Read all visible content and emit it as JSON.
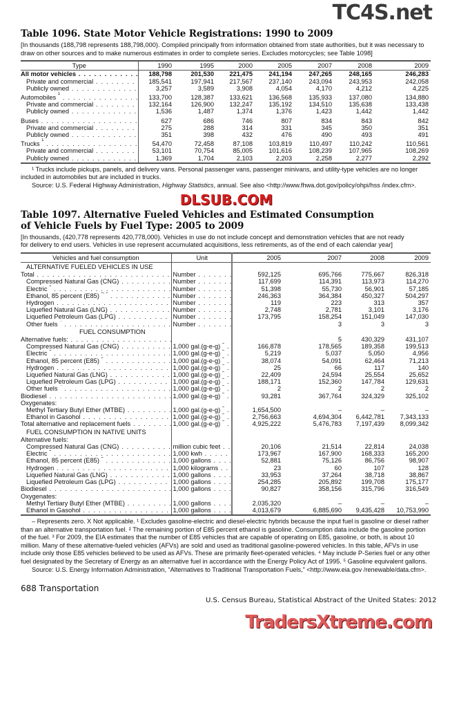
{
  "table1096": {
    "title": "Table 1096. State Motor Vehicle Registrations: 1990 to 2009",
    "headnote": "[In thousands (188,798 represents 188,798,000). Compiled principally from information obtained from state authorities, but it was necessary to draw on other sources and to make numerous estimates in order to complete series. Excludes motorcycles; see Table 1098]",
    "columns": [
      "Type",
      "1990",
      "1995",
      "2000",
      "2005",
      "2007",
      "2008",
      "2009"
    ],
    "rows": [
      {
        "label": "All motor vehicles",
        "bold": true,
        "values": [
          "188,798",
          "201,530",
          "221,475",
          "241,194",
          "247,265",
          "248,165",
          "246,283"
        ]
      },
      {
        "label": "Private and commercial",
        "indent": 1,
        "values": [
          "185,541",
          "197,941",
          "217,567",
          "237,140",
          "243,094",
          "243,953",
          "242,058"
        ]
      },
      {
        "label": "Publicly owned",
        "indent": 1,
        "values": [
          "3,257",
          "3,589",
          "3,908",
          "4,054",
          "4,170",
          "4,212",
          "4,225"
        ]
      },
      {
        "label": "Automobiles",
        "sup": "1",
        "gap": true,
        "values": [
          "133,700",
          "128,387",
          "133,621",
          "136,568",
          "135,933",
          "137,080",
          "134,880"
        ]
      },
      {
        "label": "Private and commercial",
        "indent": 1,
        "values": [
          "132,164",
          "126,900",
          "132,247",
          "135,192",
          "134,510",
          "135,638",
          "133,438"
        ]
      },
      {
        "label": "Publicly owned",
        "indent": 1,
        "values": [
          "1,536",
          "1,487",
          "1,374",
          "1,376",
          "1,423",
          "1,442",
          "1,442"
        ]
      },
      {
        "label": "Buses",
        "gap": true,
        "values": [
          "627",
          "686",
          "746",
          "807",
          "834",
          "843",
          "842"
        ]
      },
      {
        "label": "Private and commercial",
        "indent": 1,
        "values": [
          "275",
          "288",
          "314",
          "331",
          "345",
          "350",
          "351"
        ]
      },
      {
        "label": "Publicly owned",
        "indent": 1,
        "values": [
          "351",
          "398",
          "432",
          "476",
          "490",
          "493",
          "491"
        ]
      },
      {
        "label": "Trucks",
        "sup": "1",
        "gap": true,
        "values": [
          "54,470",
          "72,458",
          "87,108",
          "103,819",
          "110,497",
          "110,242",
          "110,561"
        ]
      },
      {
        "label": "Private and commercial",
        "indent": 1,
        "values": [
          "53,101",
          "70,754",
          "85,005",
          "101,616",
          "108,239",
          "107,965",
          "108,269"
        ]
      },
      {
        "label": "Publicly owned",
        "indent": 1,
        "values": [
          "1,369",
          "1,704",
          "2,103",
          "2,203",
          "2,258",
          "2,277",
          "2,292"
        ]
      }
    ],
    "footnote": "¹ Trucks include pickups, panels, and delivery vans. Personal passenger vans, passenger minivans, and utility-type vehicles are no longer included in automobiles but are included in trucks.",
    "source_prefix": "Source: U.S. Federal Highway Administration, ",
    "source_italic": "Highway Statistics",
    "source_suffix": ", annual. See also <http://www.fhwa.dot.gov/policy/ohpi/hss /index.cfm>."
  },
  "table1097": {
    "title_line1": "Table 1097. Alternative Fueled Vehicles and Estimated Consumption",
    "title_line2": "of Vehicle Fuels by Fuel Type: 2005 to 2009",
    "headnote": "[In thousands, (420,778 represents 420,778,000). Vehicles in use do not include concept and demonstration vehicles that are not ready for delivery to end users. Vehicles in use represent accumulated acquisitions, less retirements, as of the end of each calendar year]",
    "columns": [
      "Vehicles and fuel consumption",
      "Unit",
      "2005",
      "2007",
      "2008",
      "2009"
    ],
    "rows": [
      {
        "section": "ALTERNATIVE FUELED VEHICLES IN USE"
      },
      {
        "label": "Total",
        "unit": "Number",
        "values": [
          "592,125",
          "695,766",
          "775,667",
          "826,318"
        ]
      },
      {
        "label": "Compressed Natural Gas (CNG)",
        "indent": 1,
        "unit": "Number",
        "values": [
          "117,699",
          "114,391",
          "113,973",
          "114,270"
        ]
      },
      {
        "label": "Electric",
        "sup": "1",
        "indent": 1,
        "unit": "Number",
        "values": [
          "51,398",
          "55,730",
          "56,901",
          "57,185"
        ]
      },
      {
        "label": "Ethanol, 85 percent (E85)",
        "sup": "2, 3",
        "indent": 1,
        "unit": "Number",
        "values": [
          "246,363",
          "364,384",
          "450,327",
          "504,297"
        ]
      },
      {
        "label": "Hydrogen",
        "indent": 1,
        "unit": "Number",
        "values": [
          "119",
          "223",
          "313",
          "357"
        ]
      },
      {
        "label": "Liquefied Natural Gas (LNG)",
        "indent": 1,
        "unit": "Number",
        "values": [
          "2,748",
          "2,781",
          "3,101",
          "3,176"
        ]
      },
      {
        "label": "Liquefied Petroleum Gas (LPG)",
        "indent": 1,
        "unit": "Number",
        "values": [
          "173,795",
          "158,254",
          "151,049",
          "147,030"
        ]
      },
      {
        "label": "Other fuels",
        "sup": "4",
        "indent": 1,
        "unit": "Number",
        "values": [
          "",
          "3",
          "3",
          "3"
        ]
      },
      {
        "section": "FUEL CONSUMPTION",
        "center": true
      },
      {
        "label": "Alternative fuels:",
        "unit": "",
        "values": [
          "",
          "5",
          "430,329",
          "431,107"
        ]
      },
      {
        "label": "Compressed Natural Gas (CNG)",
        "indent": 1,
        "unit": "1,000 gal.(g-e-g)",
        "unit_sup": "5",
        "values": [
          "166,878",
          "178,565",
          "189,358",
          "199,513"
        ]
      },
      {
        "label": "Electric",
        "sup": "1",
        "indent": 1,
        "unit": "1,000 gal.(g-e-g)",
        "unit_sup": "5",
        "values": [
          "5,219",
          "5,037",
          "5,050",
          "4,956"
        ]
      },
      {
        "label": "Ethanol, 85 percent (E85)",
        "sup": "2",
        "indent": 1,
        "unit": "1,000 gal.(g-e-g)",
        "unit_sup": "5",
        "values": [
          "38,074",
          "54,091",
          "62,464",
          "71,213"
        ]
      },
      {
        "label": "Hydrogen",
        "indent": 1,
        "unit": "1,000 gal.(g-e-g)",
        "unit_sup": "5",
        "values": [
          "25",
          "66",
          "117",
          "140"
        ]
      },
      {
        "label": "Liquefied Natural Gas (LNG)",
        "indent": 1,
        "unit": "1,000 gal.(g-e-g)",
        "unit_sup": "5",
        "values": [
          "22,409",
          "24,594",
          "25,554",
          "25,652"
        ]
      },
      {
        "label": "Liquefied Petroleum Gas (LPG)",
        "indent": 1,
        "unit": "1,000 gal.(g-e-g)",
        "unit_sup": "5",
        "values": [
          "188,171",
          "152,360",
          "147,784",
          "129,631"
        ]
      },
      {
        "label": "Other fuels",
        "sup": "4",
        "indent": 1,
        "unit": "1,000 gal.(g-e-g)",
        "unit_sup": "5",
        "values": [
          "2",
          "2",
          "2",
          "2"
        ]
      },
      {
        "label": "Biodiesel",
        "unit": "1,000 gal.(g-e-g)",
        "unit_sup": "5",
        "values": [
          "93,281",
          "367,764",
          "324,329",
          "325,102"
        ]
      },
      {
        "label": "Oxygenates:",
        "nodots": true,
        "unit": "",
        "values": [
          "",
          "",
          "",
          ""
        ]
      },
      {
        "label": "Methyl Tertiary Butyl Ether (MTBE)",
        "indent": 1,
        "unit": "1,000 gal.(g-e-g)",
        "unit_sup": "5",
        "values": [
          "1,654,500",
          "–",
          "–",
          "–"
        ]
      },
      {
        "label": "Ethanol in Gasohol",
        "indent": 1,
        "unit": "1,000 gal.(g-e-g)",
        "unit_sup": "5",
        "values": [
          "2,756,663",
          "4,694,304",
          "6,442,781",
          "7,343,133"
        ]
      },
      {
        "label": "Total alternative and replacement fuels",
        "unit": "1,000 gal.(g-e-g)",
        "unit_sup": "5",
        "values": [
          "4,925,222",
          "5,476,783",
          "7,197,439",
          "8,099,342"
        ]
      },
      {
        "section": "FUEL CONSUMPTION IN NATIVE UNITS"
      },
      {
        "label": "Alternative fuels:",
        "nodots": true,
        "unit": "",
        "values": [
          "",
          "",
          "",
          ""
        ]
      },
      {
        "label": "Compressed Natural Gas (CNG)",
        "indent": 1,
        "unit": "million cubic feet",
        "values": [
          "20,106",
          "21,514",
          "22,814",
          "24,038"
        ]
      },
      {
        "label": "Electric",
        "sup": "1",
        "indent": 1,
        "unit": "1,000 kwh",
        "values": [
          "173,967",
          "167,900",
          "168,333",
          "165,200"
        ]
      },
      {
        "label": "Ethanol, 85 percent (E85)",
        "sup": "2",
        "indent": 1,
        "unit": "1,000 gallons",
        "values": [
          "52,881",
          "75,126",
          "86,756",
          "98,907"
        ]
      },
      {
        "label": "Hydrogen",
        "indent": 1,
        "unit": "1,000 kilograms",
        "values": [
          "23",
          "60",
          "107",
          "128"
        ]
      },
      {
        "label": "Liquefied Natural Gas (LNG)",
        "indent": 1,
        "unit": "1,000 gallons",
        "values": [
          "33,953",
          "37,264",
          "38,718",
          "38,867"
        ]
      },
      {
        "label": "Liquefied Petroleum Gas (LPG)",
        "indent": 1,
        "unit": "1,000 gallons",
        "values": [
          "254,285",
          "205,892",
          "199,708",
          "175,177"
        ]
      },
      {
        "label": "Biodiesel",
        "unit": "1,000 gallons",
        "values": [
          "90,827",
          "358,156",
          "315,796",
          "316,549"
        ]
      },
      {
        "label": "Oxygenates:",
        "nodots": true,
        "unit": "",
        "values": [
          "",
          "",
          "",
          ""
        ]
      },
      {
        "label": "Methyl Tertiary Butyl Ether (MTBE)",
        "indent": 1,
        "unit": "1,000 gallons",
        "values": [
          "2,035,320",
          "–",
          "–",
          "–"
        ]
      },
      {
        "label": "Ethanol in Gasohol",
        "indent": 1,
        "unit": "1,000 gallons",
        "values": [
          "4,013,679",
          "6,885,690",
          "9,435,428",
          "10,753,990"
        ]
      }
    ],
    "footnote": "– Represents zero. X Not applicable. ¹ Excludes gasoline-electric and diesel-electric hybrids because the input fuel is gasoline or diesel rather than an alternative transportation fuel. ² The remaining portion of E85 percent ethanol is gasoline. Consumption data include the gasoline portion of the fuel. ³ For 2009, the EIA estimates that the number of E85 vehicles that are capable of operating on E85, gasoline, or both, is about 10 million. Many of these alternative-fueled vehicles (AFVs) are sold and used as traditional gasoline-powered vehicles. In this table, AFVs in use include only those E85 vehicles believed to be used as AFVs. These are primarily fleet-operated vehicles. ⁴ May include P-Series fuel or any other fuel designated by the Secretary of Energy as an alternative fuel in accordance with the Energy Policy Act of 1995. ⁵ Gasoline equivalent gallons.",
    "source": "Source: U.S. Energy Information Administration, “Alternatives to Traditional Transportation Fuels,” <http://www.eia.gov /renewable/data.cfm>."
  },
  "footer": {
    "page_label": "688  Transportation",
    "publication": "U.S. Census Bureau, Statistical Abstract of the United States: 2012"
  },
  "watermarks": {
    "top": "TC4S.net",
    "middle": "DLSUB.COM",
    "bottom": "TradersXtreme.com",
    "middle_color": "#d42020",
    "bottom_color": "#e05a5a"
  }
}
